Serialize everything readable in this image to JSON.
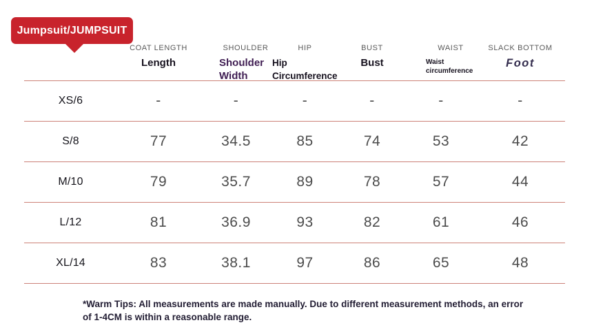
{
  "badge": {
    "label": "Jumpsuit/JUMPSUIT"
  },
  "colors": {
    "badge_red": "#c8232c",
    "divider": "#cc8177",
    "caps_gray": "#5a5a5a",
    "ink": "#17121f",
    "accent_purple": "#3f1d52",
    "foot_purple": "#342d4e",
    "value_gray": "#4c4c4c"
  },
  "chart_data": {
    "type": "table",
    "title": "Jumpsuit/JUMPSUIT",
    "columns": [
      {
        "caps": "",
        "label": ""
      },
      {
        "caps": "COAT LENGTH",
        "label": "Length"
      },
      {
        "caps": "SHOULDER",
        "label": "Shoulder Width"
      },
      {
        "caps": "HIP",
        "label": "Hip Circumference"
      },
      {
        "caps": "BUST",
        "label": "Bust"
      },
      {
        "caps": "WAIST",
        "label": "Waist circumference"
      },
      {
        "caps": "SLACK BOTTOM",
        "label": "Foot"
      }
    ],
    "rows": [
      {
        "size": "XS/6",
        "values": [
          "-",
          "-",
          "-",
          "-",
          "-",
          "-"
        ]
      },
      {
        "size": "S/8",
        "values": [
          "77",
          "34.5",
          "85",
          "74",
          "53",
          "42"
        ]
      },
      {
        "size": "M/10",
        "values": [
          "79",
          "35.7",
          "89",
          "78",
          "57",
          "44"
        ]
      },
      {
        "size": "L/12",
        "values": [
          "81",
          "36.9",
          "93",
          "82",
          "61",
          "46"
        ]
      },
      {
        "size": "XL/14",
        "values": [
          "83",
          "38.1",
          "97",
          "86",
          "65",
          "48"
        ]
      }
    ]
  },
  "footer": {
    "note": "*Warm Tips: All measurements are made manually. Due to different measurement methods, an error of 1-4CM is within a reasonable range."
  }
}
